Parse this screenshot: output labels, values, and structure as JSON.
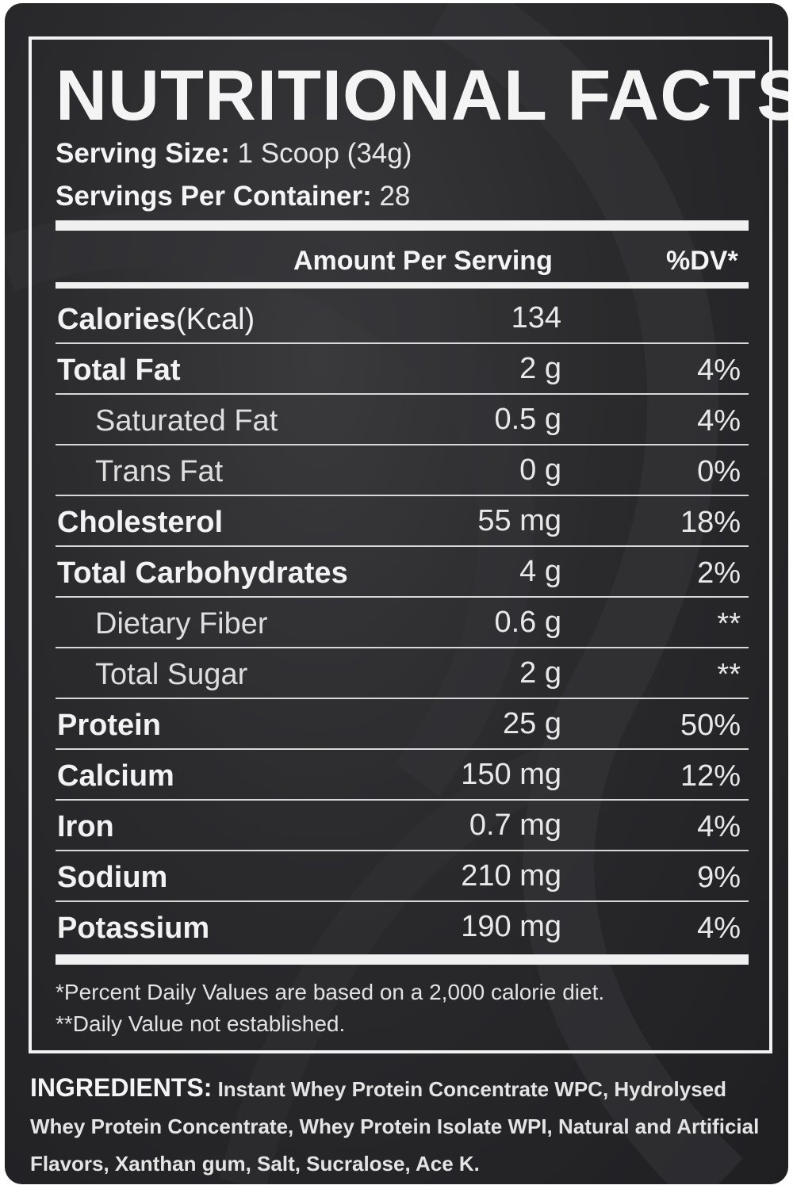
{
  "title": "NUTRITIONAL FACTS",
  "serving_size": {
    "label": "Serving Size:",
    "value": "1 Scoop (34g)"
  },
  "servings_per_container": {
    "label": "Servings Per Container:",
    "value": "28"
  },
  "columns": {
    "amount": "Amount Per Serving",
    "dv": "%DV*"
  },
  "calories": {
    "name": "Calories",
    "unit": "(Kcal)",
    "amount": "134",
    "dv": ""
  },
  "nutrients": [
    {
      "name": "Total Fat",
      "amount": "2 g",
      "dv": "4%",
      "style": "bold"
    },
    {
      "name": "Saturated Fat",
      "amount": "0.5 g",
      "dv": "4%",
      "style": "indent"
    },
    {
      "name": "Trans Fat",
      "amount": "0 g",
      "dv": "0%",
      "style": "indent"
    },
    {
      "name": "Cholesterol",
      "amount": "55 mg",
      "dv": "18%",
      "style": "bold"
    },
    {
      "name": "Total Carbohydrates",
      "amount": "4 g",
      "dv": "2%",
      "style": "bold"
    },
    {
      "name": "Dietary Fiber",
      "amount": "0.6 g",
      "dv": "**",
      "style": "indent"
    },
    {
      "name": "Total Sugar",
      "amount": "2 g",
      "dv": "**",
      "style": "indent"
    },
    {
      "name": "Protein",
      "amount": "25 g",
      "dv": "50%",
      "style": "bold"
    },
    {
      "name": "Calcium",
      "amount": "150 mg",
      "dv": "12%",
      "style": "bold"
    },
    {
      "name": "Iron",
      "amount": "0.7 mg",
      "dv": "4%",
      "style": "bold"
    },
    {
      "name": "Sodium",
      "amount": "210 mg",
      "dv": "9%",
      "style": "bold"
    },
    {
      "name": "Potassium",
      "amount": "190 mg",
      "dv": "4%",
      "style": "bold"
    }
  ],
  "footnotes": [
    "*Percent Daily Values are based on a 2,000 calorie diet.",
    "**Daily Value not established."
  ],
  "ingredients": {
    "label": "INGREDIENTS:",
    "text": "Instant Whey Protein Concentrate WPC, Hydrolysed Whey Protein Concentrate, Whey Protein Isolate WPI, Natural and Artificial Flavors, Xanthan gum, Salt, Sucralose, Ace K."
  },
  "colors": {
    "background": "#2a2a2d",
    "text": "#f2f2f2",
    "rules": "#f0f0f0"
  }
}
